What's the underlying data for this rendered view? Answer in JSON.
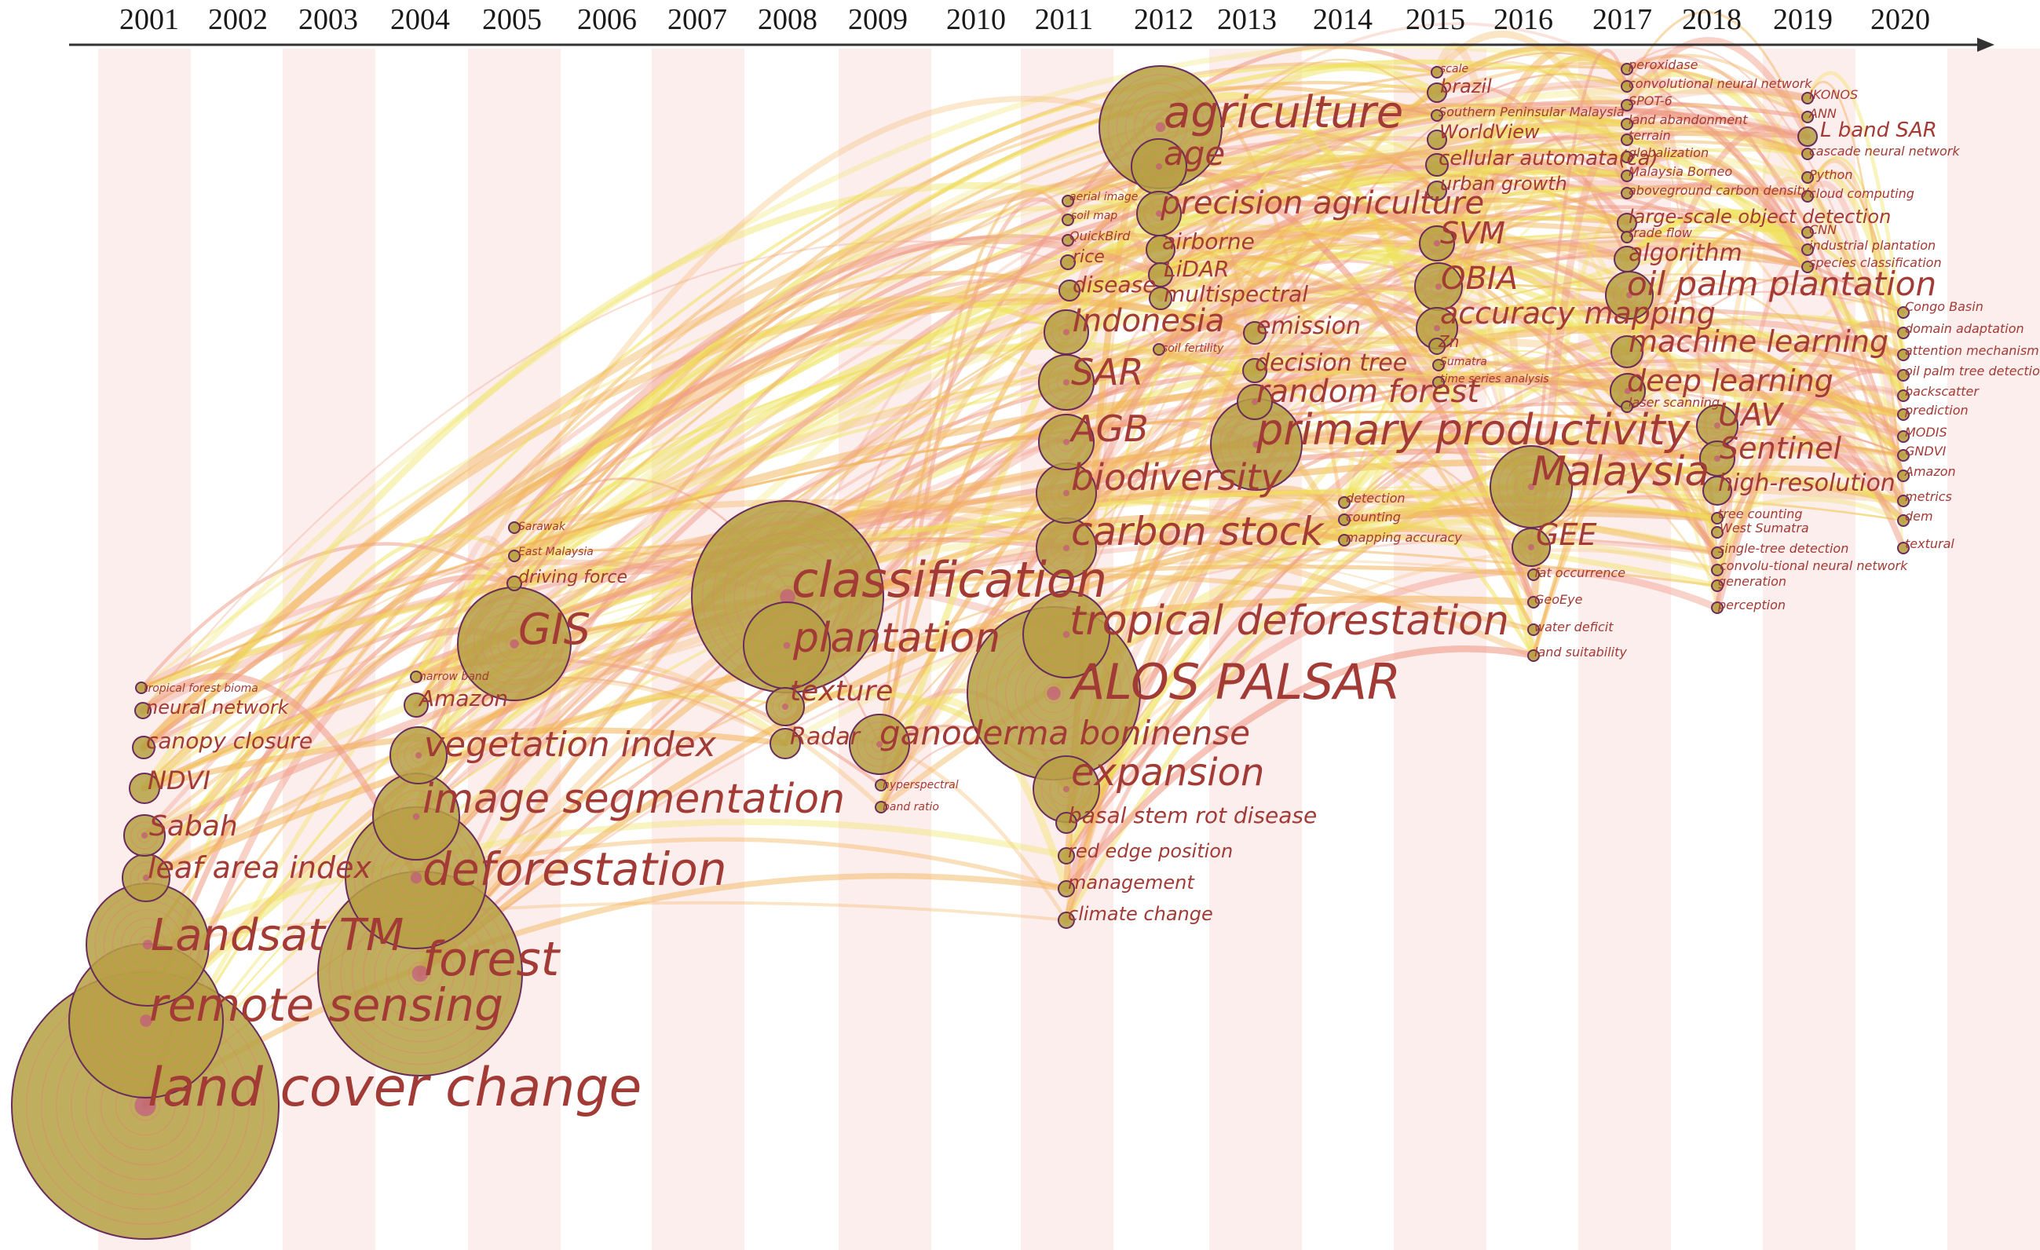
{
  "timeline": {
    "years": [
      "2001",
      "2002",
      "2003",
      "2004",
      "2005",
      "2006",
      "2007",
      "2008",
      "2009",
      "2010",
      "2011",
      "2012",
      "2013",
      "2014",
      "2015",
      "2016",
      "2017",
      "2018",
      "2019",
      "2020"
    ]
  },
  "colors": {
    "stripe": "#fdeeee",
    "node_fill": "#b5a043",
    "node_stroke": "#6b2a5c",
    "label": "#a23a35",
    "link_yellow": "#efe25a",
    "link_orange": "#f2b45a",
    "link_red": "#ef9a84"
  },
  "keywords": [
    {
      "text": "land cover change",
      "year": "2001",
      "r": 170
    },
    {
      "text": "remote sensing",
      "year": "2001",
      "r": 98
    },
    {
      "text": "Landsat TM",
      "year": "2001",
      "r": 78
    },
    {
      "text": "leaf area index",
      "year": "2001",
      "r": 30
    },
    {
      "text": "Sabah",
      "year": "2001",
      "r": 26
    },
    {
      "text": "NDVI",
      "year": "2001",
      "r": 19
    },
    {
      "text": "canopy closure",
      "year": "2001",
      "r": 14
    },
    {
      "text": "neural network",
      "year": "2001",
      "r": 10
    },
    {
      "text": "tropical forest bioma",
      "year": "2001",
      "r": 7
    },
    {
      "text": "forest",
      "year": "2004",
      "r": 130
    },
    {
      "text": "deforestation",
      "year": "2004",
      "r": 90
    },
    {
      "text": "image segmentation",
      "year": "2004",
      "r": 55
    },
    {
      "text": "vegetation index",
      "year": "2004",
      "r": 36
    },
    {
      "text": "Amazon",
      "year": "2004",
      "r": 15
    },
    {
      "text": "narrow band",
      "year": "2004",
      "r": 7
    },
    {
      "text": "GIS",
      "year": "2005",
      "r": 72
    },
    {
      "text": "driving force",
      "year": "2005",
      "r": 9
    },
    {
      "text": "East Malaysia",
      "year": "2005",
      "r": 7
    },
    {
      "text": "Sarawak",
      "year": "2005",
      "r": 7
    },
    {
      "text": "classification",
      "year": "2008",
      "r": 122
    },
    {
      "text": "plantation",
      "year": "2008",
      "r": 55
    },
    {
      "text": "texture",
      "year": "2008",
      "r": 24
    },
    {
      "text": "Radar",
      "year": "2008",
      "r": 19
    },
    {
      "text": "ganoderma boninense",
      "year": "2009",
      "r": 38
    },
    {
      "text": "hyperspectral",
      "year": "2009",
      "r": 7
    },
    {
      "text": "band ratio",
      "year": "2009",
      "r": 7
    },
    {
      "text": "ALOS PALSAR",
      "year": "2011",
      "r": 110
    },
    {
      "text": "tropical deforestation",
      "year": "2011",
      "r": 55
    },
    {
      "text": "expansion",
      "year": "2011",
      "r": 42
    },
    {
      "text": "carbon stock",
      "year": "2011",
      "r": 38
    },
    {
      "text": "biodiversity",
      "year": "2011",
      "r": 38
    },
    {
      "text": "AGB",
      "year": "2011",
      "r": 35
    },
    {
      "text": "SAR",
      "year": "2011",
      "r": 35
    },
    {
      "text": "Indonesia",
      "year": "2011",
      "r": 28
    },
    {
      "text": "basal stem rot disease",
      "year": "2011",
      "r": 13
    },
    {
      "text": "red edge position",
      "year": "2011",
      "r": 10
    },
    {
      "text": "management",
      "year": "2011",
      "r": 10
    },
    {
      "text": "climate change",
      "year": "2011",
      "r": 10
    },
    {
      "text": "disease",
      "year": "2011",
      "r": 13
    },
    {
      "text": "rice",
      "year": "2011",
      "r": 9
    },
    {
      "text": "QuickBird",
      "year": "2011",
      "r": 7
    },
    {
      "text": "soil map",
      "year": "2011",
      "r": 7
    },
    {
      "text": "aerial image",
      "year": "2011",
      "r": 7
    },
    {
      "text": "agriculture",
      "year": "2012",
      "r": 78
    },
    {
      "text": "age",
      "year": "2012",
      "r": 35
    },
    {
      "text": "precision agriculture",
      "year": "2012",
      "r": 28
    },
    {
      "text": "airborne",
      "year": "2012",
      "r": 18
    },
    {
      "text": "LiDAR",
      "year": "2012",
      "r": 15
    },
    {
      "text": "multispectral",
      "year": "2012",
      "r": 14
    },
    {
      "text": "soil fertility",
      "year": "2012",
      "r": 7
    },
    {
      "text": "primary productivity",
      "year": "2013",
      "r": 58
    },
    {
      "text": "random forest",
      "year": "2013",
      "r": 22
    },
    {
      "text": "decision tree",
      "year": "2013",
      "r": 15
    },
    {
      "text": "emission",
      "year": "2013",
      "r": 14
    },
    {
      "text": "detection",
      "year": "2014",
      "r": 7
    },
    {
      "text": "counting",
      "year": "2014",
      "r": 7
    },
    {
      "text": "mapping accuracy",
      "year": "2014",
      "r": 7
    },
    {
      "text": "OBIA",
      "year": "2015",
      "r": 30
    },
    {
      "text": "accuracy mapping",
      "year": "2015",
      "r": 26
    },
    {
      "text": "SVM",
      "year": "2015",
      "r": 22
    },
    {
      "text": "cellular automata(ca)",
      "year": "2015",
      "r": 14
    },
    {
      "text": "WorldView",
      "year": "2015",
      "r": 12
    },
    {
      "text": "urban growth",
      "year": "2015",
      "r": 12
    },
    {
      "text": "brazil",
      "year": "2015",
      "r": 12
    },
    {
      "text": "Zn",
      "year": "2015",
      "r": 10
    },
    {
      "text": "Southern Peninsular Malaysia",
      "year": "2015",
      "r": 7
    },
    {
      "text": "scale",
      "year": "2015",
      "r": 7
    },
    {
      "text": "Sumatra",
      "year": "2015",
      "r": 7
    },
    {
      "text": "time series analysis",
      "year": "2015",
      "r": 7
    },
    {
      "text": "Malaysia",
      "year": "2016",
      "r": 52
    },
    {
      "text": "GEE",
      "year": "2016",
      "r": 24
    },
    {
      "text": "fat occurrence",
      "year": "2016",
      "r": 7
    },
    {
      "text": "GeoEye",
      "year": "2016",
      "r": 7
    },
    {
      "text": "water deficit",
      "year": "2016",
      "r": 7
    },
    {
      "text": "land suitability",
      "year": "2016",
      "r": 7
    },
    {
      "text": "oil palm plantation",
      "year": "2017",
      "r": 30
    },
    {
      "text": "deep learning",
      "year": "2017",
      "r": 22
    },
    {
      "text": "machine learning",
      "year": "2017",
      "r": 20
    },
    {
      "text": "algorithm",
      "year": "2017",
      "r": 16
    },
    {
      "text": "large-scale object detection",
      "year": "2017",
      "r": 12
    },
    {
      "text": "Malaysia Borneo",
      "year": "2017",
      "r": 7
    },
    {
      "text": "aboveground carbon density",
      "year": "2017",
      "r": 7
    },
    {
      "text": "globalization",
      "year": "2017",
      "r": 7
    },
    {
      "text": "terrain",
      "year": "2017",
      "r": 7
    },
    {
      "text": "land abandonment",
      "year": "2017",
      "r": 7
    },
    {
      "text": "SPOT-6",
      "year": "2017",
      "r": 7
    },
    {
      "text": "convolutional neural network",
      "year": "2017",
      "r": 7
    },
    {
      "text": "peroxidase",
      "year": "2017",
      "r": 7
    },
    {
      "text": "trade flow",
      "year": "2017",
      "r": 7
    },
    {
      "text": "laser scanning",
      "year": "2017",
      "r": 7
    },
    {
      "text": "UAV",
      "year": "2018",
      "r": 26
    },
    {
      "text": "Sentinel",
      "year": "2018",
      "r": 22
    },
    {
      "text": "high-resolution",
      "year": "2018",
      "r": 18
    },
    {
      "text": "tree counting",
      "year": "2018",
      "r": 7
    },
    {
      "text": "West Sumatra",
      "year": "2018",
      "r": 7
    },
    {
      "text": "single-tree detection",
      "year": "2018",
      "r": 7
    },
    {
      "text": "convolu-tional neural network",
      "year": "2018",
      "r": 7
    },
    {
      "text": "generation",
      "year": "2018",
      "r": 7
    },
    {
      "text": "perception",
      "year": "2018",
      "r": 7
    },
    {
      "text": "L band SAR",
      "year": "2019",
      "r": 12
    },
    {
      "text": "IKONOS",
      "year": "2019",
      "r": 7
    },
    {
      "text": "ANN",
      "year": "2019",
      "r": 7
    },
    {
      "text": "cascade neural network",
      "year": "2019",
      "r": 7
    },
    {
      "text": "Python",
      "year": "2019",
      "r": 7
    },
    {
      "text": "cloud computing",
      "year": "2019",
      "r": 7
    },
    {
      "text": "CNN",
      "year": "2019",
      "r": 7
    },
    {
      "text": "industrial plantation",
      "year": "2019",
      "r": 7
    },
    {
      "text": "species classification",
      "year": "2019",
      "r": 7
    },
    {
      "text": "Congo Basin",
      "year": "2020",
      "r": 7
    },
    {
      "text": "domain adaptation",
      "year": "2020",
      "r": 7
    },
    {
      "text": "attention mechanism",
      "year": "2020",
      "r": 7
    },
    {
      "text": "oil palm tree detection",
      "year": "2020",
      "r": 7
    },
    {
      "text": "backscatter",
      "year": "2020",
      "r": 7
    },
    {
      "text": "prediction",
      "year": "2020",
      "r": 7
    },
    {
      "text": "MODIS",
      "year": "2020",
      "r": 7
    },
    {
      "text": "GNDVI",
      "year": "2020",
      "r": 7
    },
    {
      "text": "Amazon",
      "year": "2020",
      "r": 7
    },
    {
      "text": "metrics",
      "year": "2020",
      "r": 7
    },
    {
      "text": "dem",
      "year": "2020",
      "r": 7
    },
    {
      "text": "textural",
      "year": "2020",
      "r": 7
    }
  ]
}
